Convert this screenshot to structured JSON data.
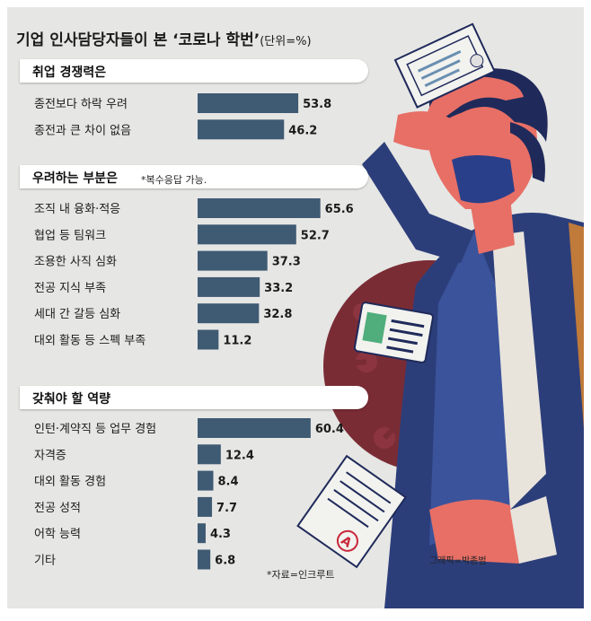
{
  "title": "기업 인사담당자들이 본 ‘코로나 학번’",
  "unit": "(단위=%)",
  "note": "*복수응답 가능.",
  "source": "*자료=인크루트",
  "credit": "그래픽=박종범",
  "colors": {
    "bar": "#3f5a73",
    "background": "#e6e6e4"
  },
  "chart_data": [
    {
      "type": "bar",
      "title": "취업 경쟁력은",
      "categories": [
        "종전보다 하락 우려",
        "종전과 큰 차이 없음"
      ],
      "values": [
        53.8,
        46.2
      ],
      "xlim": [
        0,
        72
      ]
    },
    {
      "type": "bar",
      "title": "우려하는 부분은",
      "categories": [
        "조직 내 융화·적응",
        "협업 등 팀워크",
        "조용한 사직 심화",
        "전공 지식 부족",
        "세대 간 갈등 심화",
        "대외 활동 등 스펙 부족"
      ],
      "values": [
        65.6,
        52.7,
        37.3,
        33.2,
        32.8,
        11.2
      ],
      "xlim": [
        0,
        72
      ]
    },
    {
      "type": "bar",
      "title": "갖춰야 할 역량",
      "categories": [
        "인턴·계약직 등 업무 경험",
        "자격증",
        "대외 활동 경험",
        "전공 성적",
        "어학 능력",
        "기타"
      ],
      "values": [
        60.4,
        12.4,
        8.4,
        7.7,
        4.3,
        6.8
      ],
      "xlim": [
        0,
        72
      ]
    }
  ]
}
